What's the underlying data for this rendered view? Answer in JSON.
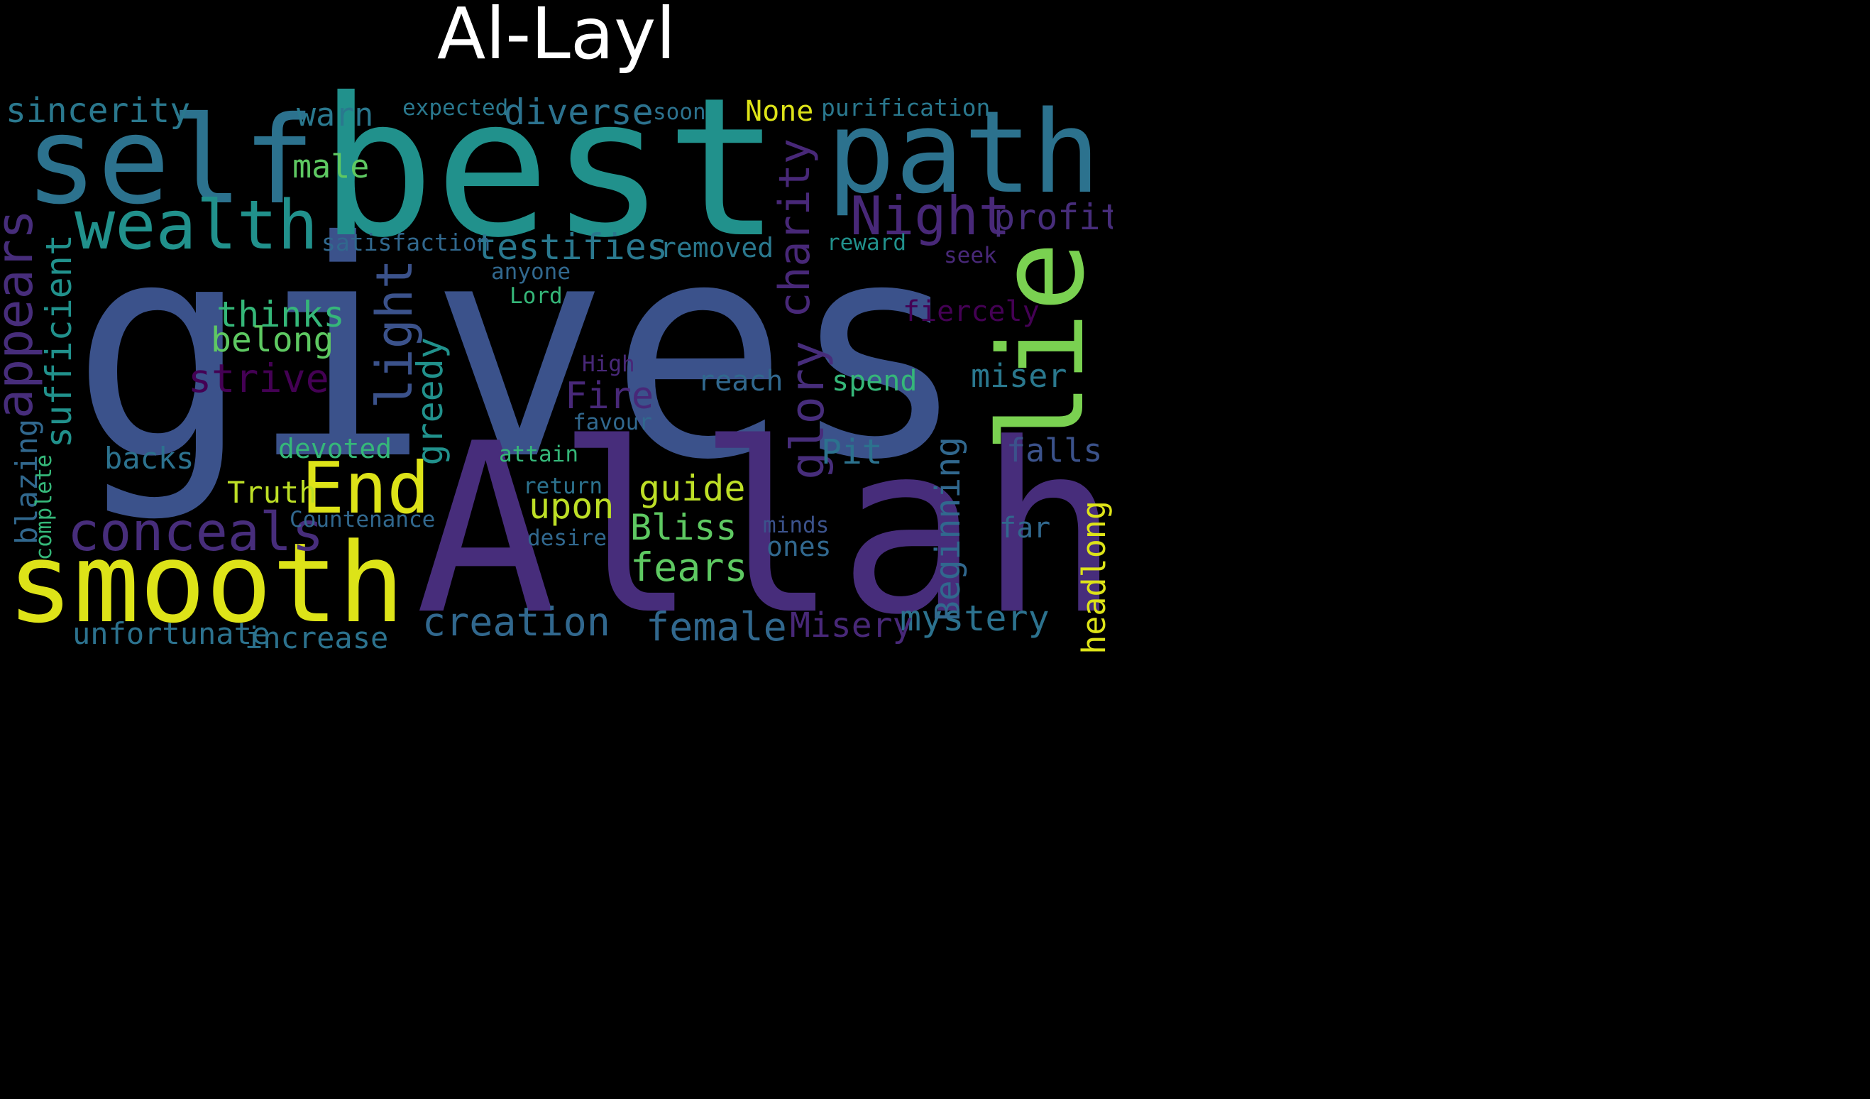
{
  "title": "Al-Layl",
  "colors": {
    "background": "#000000",
    "title": "#ffffff"
  },
  "words": [
    {
      "text": "gives",
      "color": "#3b528b"
    },
    {
      "text": "best",
      "color": "#21918c"
    },
    {
      "text": "Allah",
      "color": "#472d7b"
    },
    {
      "text": "self",
      "color": "#2c728e"
    },
    {
      "text": "path",
      "color": "#2c728e"
    },
    {
      "text": "smooth",
      "color": "#dde318"
    },
    {
      "text": "lie",
      "color": "#7ad151"
    },
    {
      "text": "wealth",
      "color": "#21918c"
    },
    {
      "text": "End",
      "color": "#dde318"
    },
    {
      "text": "Night",
      "color": "#482878"
    },
    {
      "text": "conceals",
      "color": "#472d7b"
    },
    {
      "text": "appears",
      "color": "#472d7b"
    },
    {
      "text": "light",
      "color": "#3b528b"
    },
    {
      "text": "charity",
      "color": "#482878"
    },
    {
      "text": "glory",
      "color": "#472d7b"
    },
    {
      "text": "creation",
      "color": "#31688e"
    },
    {
      "text": "sufficient",
      "color": "#21918c"
    },
    {
      "text": "testifies",
      "color": "#2a788e"
    },
    {
      "text": "diverse",
      "color": "#2c728e"
    },
    {
      "text": "female",
      "color": "#31688e"
    },
    {
      "text": "mystery",
      "color": "#2c728e"
    },
    {
      "text": "Beginning",
      "color": "#31688e"
    },
    {
      "text": "headlong",
      "color": "#dde318"
    },
    {
      "text": "fears",
      "color": "#5ec962"
    },
    {
      "text": "Misery",
      "color": "#482878"
    },
    {
      "text": "Bliss",
      "color": "#5ec962"
    },
    {
      "text": "guide",
      "color": "#bddf26"
    },
    {
      "text": "upon",
      "color": "#bddf26"
    },
    {
      "text": "strive",
      "color": "#440154"
    },
    {
      "text": "thinks",
      "color": "#35b779"
    },
    {
      "text": "belong",
      "color": "#5ec962"
    },
    {
      "text": "greedy",
      "color": "#21918c"
    },
    {
      "text": "Fire",
      "color": "#482878"
    },
    {
      "text": "Pit",
      "color": "#2c728e"
    },
    {
      "text": "falls",
      "color": "#3b528b"
    },
    {
      "text": "miser",
      "color": "#2a788e"
    },
    {
      "text": "profit",
      "color": "#472d7b"
    },
    {
      "text": "sincerity",
      "color": "#2a788e"
    },
    {
      "text": "warn",
      "color": "#2a788e"
    },
    {
      "text": "male",
      "color": "#5ec962"
    },
    {
      "text": "blazing",
      "color": "#31688e"
    },
    {
      "text": "backs",
      "color": "#2c728e"
    },
    {
      "text": "Truth",
      "color": "#bddf26"
    },
    {
      "text": "unfortunate",
      "color": "#2c728e"
    },
    {
      "text": "increase",
      "color": "#2c728e"
    },
    {
      "text": "devoted",
      "color": "#35b779"
    },
    {
      "text": "removed",
      "color": "#2a788e"
    },
    {
      "text": "reach",
      "color": "#31688e"
    },
    {
      "text": "spend",
      "color": "#35b779"
    },
    {
      "text": "fiercely",
      "color": "#440154"
    },
    {
      "text": "None",
      "color": "#dde318"
    },
    {
      "text": "far",
      "color": "#31688e"
    },
    {
      "text": "ones",
      "color": "#31688e"
    },
    {
      "text": "purification",
      "color": "#2a788e"
    },
    {
      "text": "satisfaction",
      "color": "#31688e"
    },
    {
      "text": "expected",
      "color": "#2a788e"
    },
    {
      "text": "soon",
      "color": "#2c728e"
    },
    {
      "text": "reward",
      "color": "#21918c"
    },
    {
      "text": "seek",
      "color": "#482878"
    },
    {
      "text": "anyone",
      "color": "#31688e"
    },
    {
      "text": "Lord",
      "color": "#35b779"
    },
    {
      "text": "High",
      "color": "#482878"
    },
    {
      "text": "favour",
      "color": "#31688e"
    },
    {
      "text": "attain",
      "color": "#35b779"
    },
    {
      "text": "return",
      "color": "#2c728e"
    },
    {
      "text": "Countenance",
      "color": "#31688e"
    },
    {
      "text": "desire",
      "color": "#31688e"
    },
    {
      "text": "minds",
      "color": "#3b528b"
    },
    {
      "text": "complete",
      "color": "#35b779"
    }
  ]
}
